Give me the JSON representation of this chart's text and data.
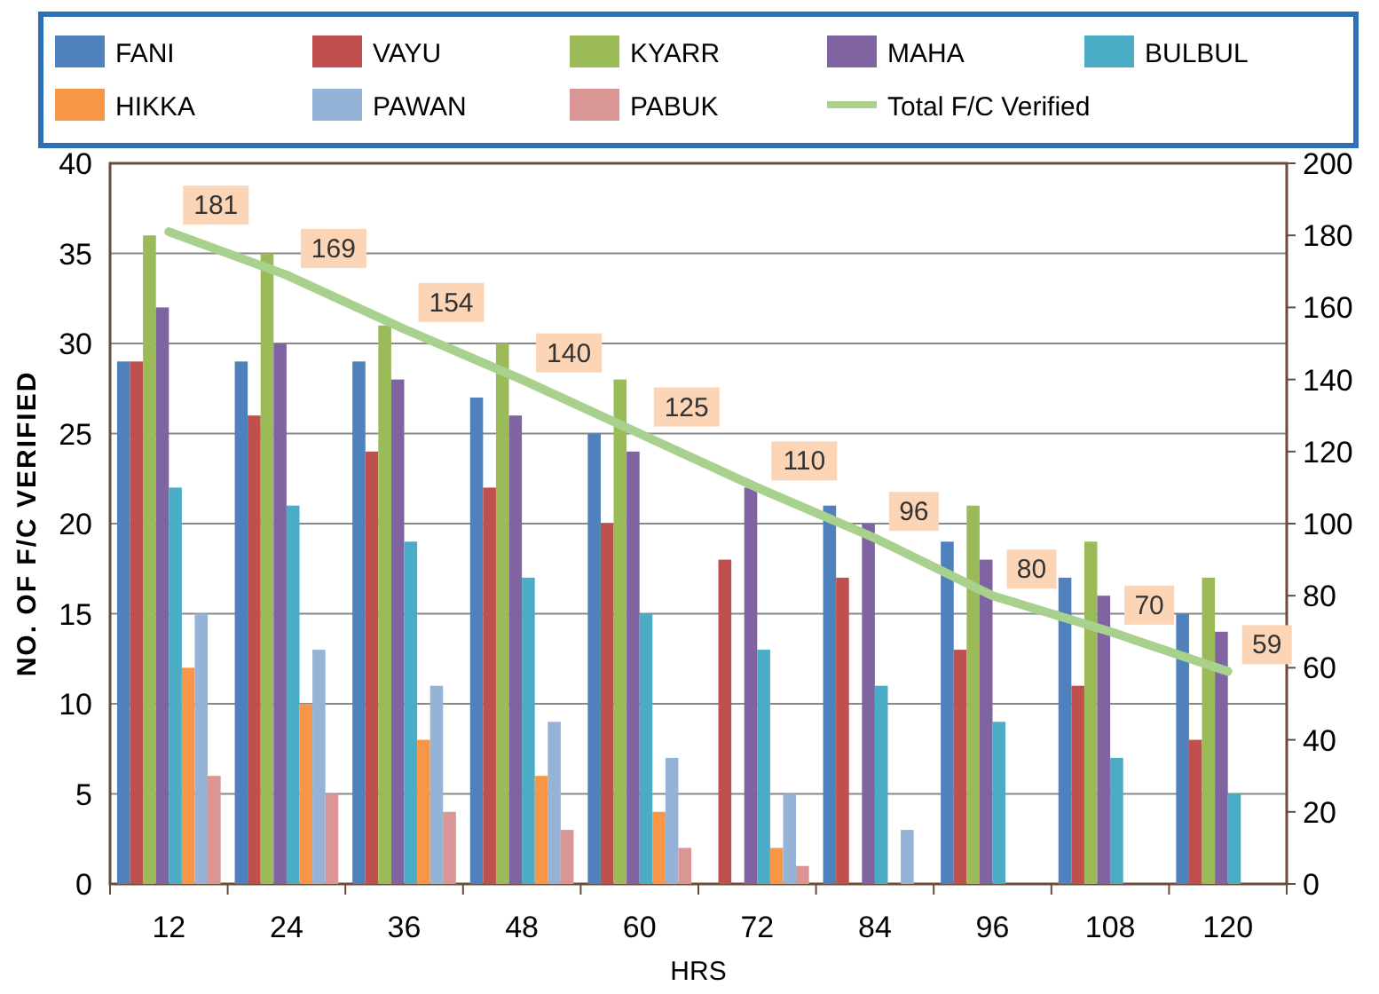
{
  "chart_data": {
    "type": "bar",
    "xlabel": "HRS",
    "ylabel": "NO. OF F/C VERIFIED",
    "categories": [
      "12",
      "24",
      "36",
      "48",
      "60",
      "72",
      "84",
      "96",
      "108",
      "120"
    ],
    "series": [
      {
        "name": "FANI",
        "color": "#4f81bd",
        "values": [
          29,
          29,
          29,
          27,
          25,
          null,
          21,
          19,
          17,
          15
        ]
      },
      {
        "name": "VAYU",
        "color": "#c0504d",
        "values": [
          29,
          26,
          24,
          22,
          20,
          18,
          17,
          13,
          11,
          8
        ]
      },
      {
        "name": "KYARR",
        "color": "#9bbb59",
        "values": [
          36,
          35,
          31,
          30,
          28,
          null,
          null,
          21,
          19,
          17
        ]
      },
      {
        "name": "MAHA",
        "color": "#8064a2",
        "values": [
          32,
          30,
          28,
          26,
          24,
          22,
          20,
          18,
          16,
          14
        ]
      },
      {
        "name": "BULBUL",
        "color": "#4bacc6",
        "values": [
          22,
          21,
          19,
          17,
          15,
          13,
          11,
          9,
          7,
          5
        ]
      },
      {
        "name": "HIKKA",
        "color": "#f79646",
        "values": [
          12,
          10,
          8,
          6,
          4,
          2,
          0,
          0,
          0,
          0
        ]
      },
      {
        "name": "PAWAN",
        "color": "#95b3d7",
        "values": [
          15,
          13,
          11,
          9,
          7,
          5,
          3,
          0,
          0,
          0
        ]
      },
      {
        "name": "PABUK",
        "color": "#d99694",
        "values": [
          6,
          5,
          4,
          3,
          2,
          1,
          0,
          0,
          0,
          0
        ]
      },
      {
        "name": "Total F/C Verified",
        "type": "line",
        "axis": "y2",
        "color": "#a9d18e",
        "values": [
          181,
          169,
          154,
          140,
          125,
          110,
          96,
          80,
          70,
          59
        ],
        "value_labels": [
          "181",
          "169",
          "154",
          "140",
          "125",
          "110",
          "96",
          "80",
          "70",
          "59"
        ]
      }
    ],
    "ylim": [
      0,
      40
    ],
    "yticks": [
      0,
      5,
      10,
      15,
      20,
      25,
      30,
      35,
      40
    ],
    "y2lim": [
      0,
      200
    ],
    "y2ticks": [
      0,
      20,
      40,
      60,
      80,
      100,
      120,
      140,
      160,
      180,
      200
    ],
    "grid": "y",
    "legend": "top"
  }
}
